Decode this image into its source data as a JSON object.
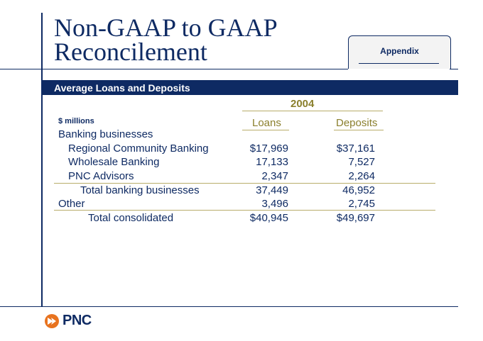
{
  "title": {
    "line1": "Non-GAAP to GAAP",
    "line2": "Reconcilement"
  },
  "appendix_tab": "Appendix",
  "section_banner": "Average Loans and Deposits",
  "table": {
    "year": "2004",
    "units": "$ millions",
    "col_loans": "Loans",
    "col_deposits": "Deposits",
    "rows": [
      {
        "label": "Banking businesses",
        "loans": "",
        "deposits": ""
      },
      {
        "label": "Regional Community Banking",
        "loans": "$17,969",
        "deposits": "$37,161"
      },
      {
        "label": "Wholesale Banking",
        "loans": "17,133",
        "deposits": "7,527"
      },
      {
        "label": "PNC Advisors",
        "loans": "2,347",
        "deposits": "2,264"
      },
      {
        "label": "Total banking businesses",
        "loans": "37,449",
        "deposits": "46,952"
      },
      {
        "label": "Other",
        "loans": "3,496",
        "deposits": "2,745"
      },
      {
        "label": "Total consolidated",
        "loans": "$40,945",
        "deposits": "$49,697"
      }
    ]
  },
  "logo": {
    "text": "PNC",
    "icon": "pnc-logo-icon",
    "color": "#e8731f"
  },
  "colors": {
    "navy": "#0e2a63",
    "gold": "#8a7f2c"
  }
}
